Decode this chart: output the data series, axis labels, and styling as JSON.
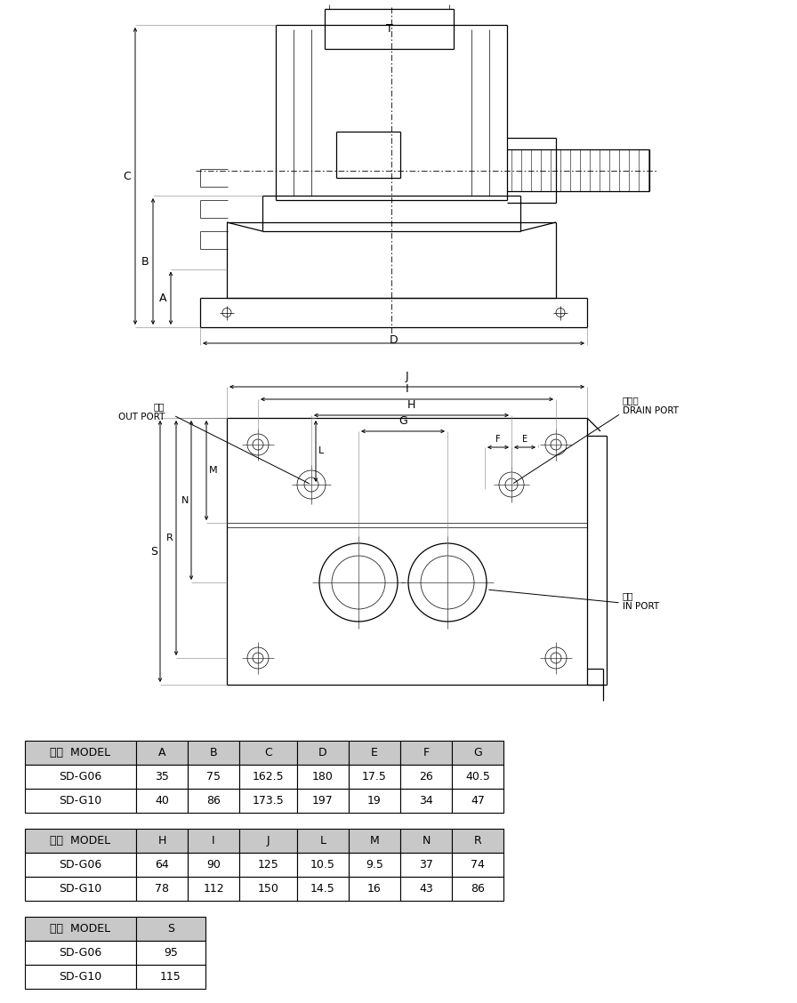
{
  "table1_headers": [
    "型式  MODEL",
    "A",
    "B",
    "C",
    "D",
    "E",
    "F",
    "G"
  ],
  "table1_rows": [
    [
      "SD-G06",
      "35",
      "75",
      "162.5",
      "180",
      "17.5",
      "26",
      "40.5"
    ],
    [
      "SD-G10",
      "40",
      "86",
      "173.5",
      "197",
      "19",
      "34",
      "47"
    ]
  ],
  "table2_headers": [
    "型式  MODEL",
    "H",
    "I",
    "J",
    "L",
    "M",
    "N",
    "R"
  ],
  "table2_rows": [
    [
      "SD-G06",
      "64",
      "90",
      "125",
      "10.5",
      "9.5",
      "37",
      "74"
    ],
    [
      "SD-G10",
      "78",
      "112",
      "150",
      "14.5",
      "16",
      "43",
      "86"
    ]
  ],
  "table3_headers": [
    "型式  MODEL",
    "S"
  ],
  "table3_rows": [
    [
      "SD-G06",
      "95"
    ],
    [
      "SD-G10",
      "115"
    ]
  ],
  "header_bg": "#c8c8c8",
  "line_color": "#000000"
}
